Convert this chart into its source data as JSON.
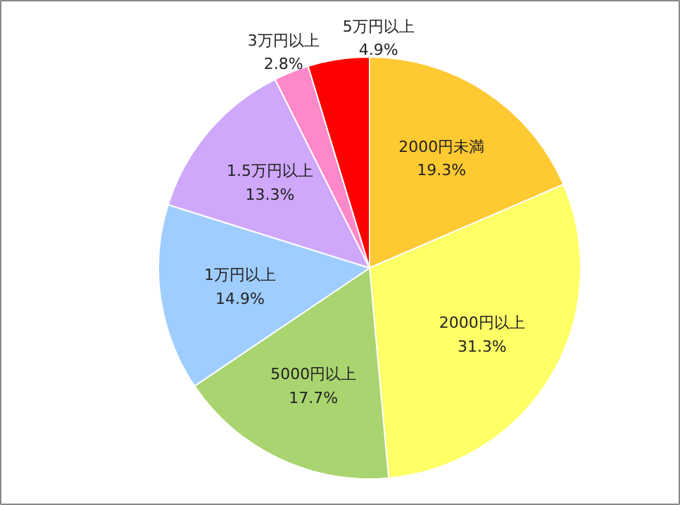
{
  "chart_data": {
    "type": "pie",
    "categories": [
      "2000円未満",
      "2000円以上",
      "5000円以上",
      "1万円以上",
      "1.5万円以上",
      "3万円以上",
      "5万円以上"
    ],
    "values": [
      19.3,
      31.3,
      17.7,
      14.9,
      13.3,
      2.8,
      4.9
    ],
    "colors": [
      "#ffc932",
      "#ffff66",
      "#a9d46f",
      "#9fcdff",
      "#cfa8fb",
      "#ff88c8",
      "#ff0000"
    ],
    "value_labels": [
      "19.3%",
      "31.3%",
      "17.7%",
      "14.9%",
      "13.3%",
      "2.8%",
      "4.9%"
    ]
  }
}
